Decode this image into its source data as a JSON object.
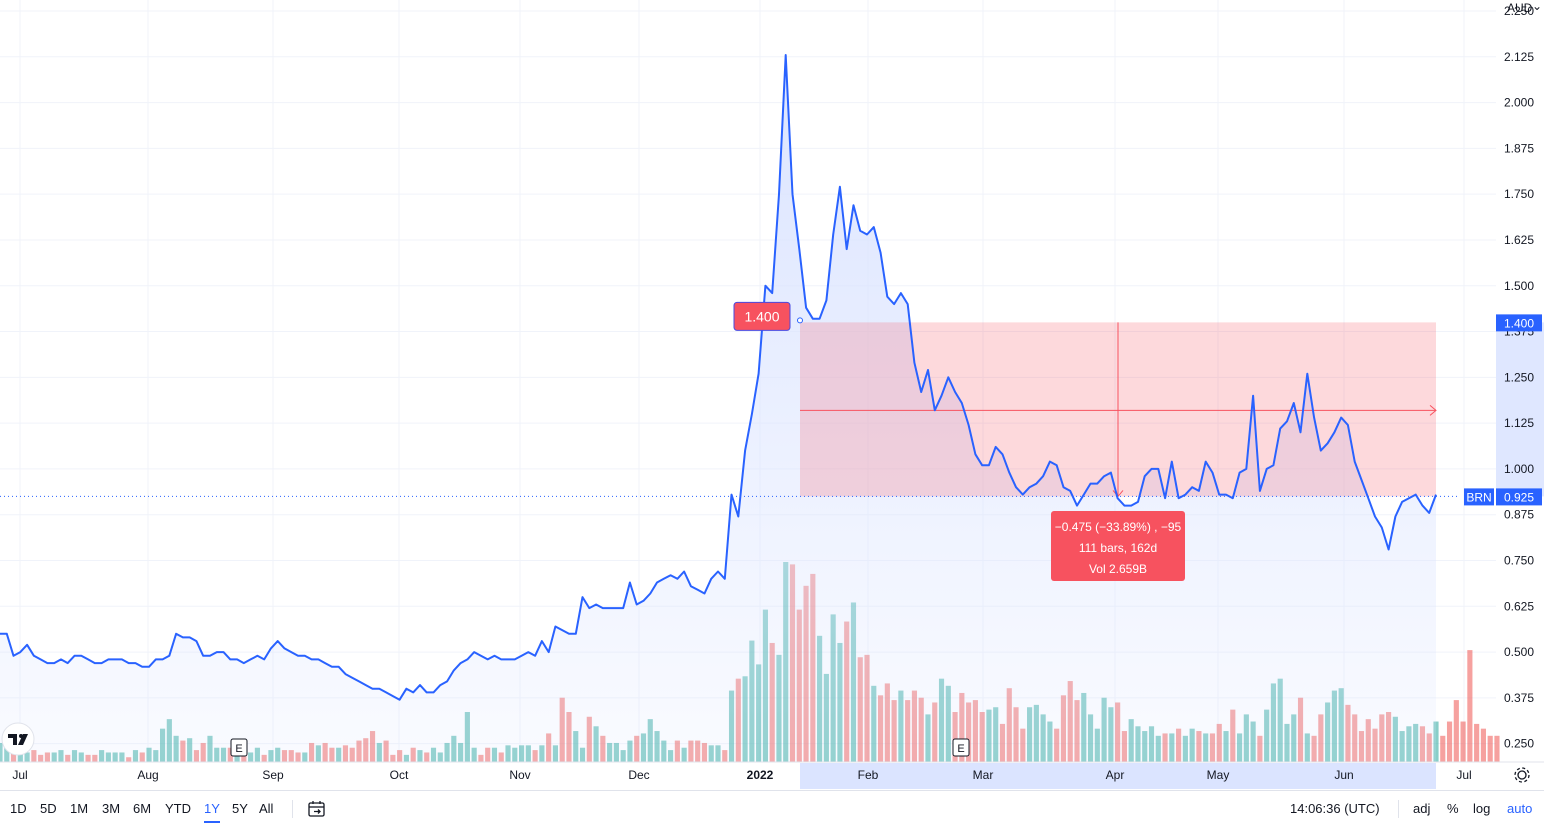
{
  "currency": "AUD",
  "currency_caret": "⌄",
  "symbol": "BRN",
  "last_price": "0.925",
  "ruler_start_price": "1.400",
  "measure": {
    "line1": "−0.475 (−33.89%) , −95",
    "line2": "111 bars, 162d",
    "line3": "Vol 2.659B"
  },
  "earnings_marker": "E",
  "footer": {
    "ranges": [
      "1D",
      "5D",
      "1M",
      "3M",
      "6M",
      "YTD",
      "1Y",
      "5Y",
      "All"
    ],
    "active_range": "1Y",
    "clock": "14:06:36 (UTC)",
    "options": [
      "adj",
      "%",
      "log",
      "auto"
    ],
    "active_option": "auto"
  },
  "colors": {
    "line": "#2962ff",
    "area_fill": "#dbe4ff",
    "volume_up": "#26a69a",
    "volume_down": "#ef5350",
    "measure_fill": "#f7525f",
    "grid": "#f0f3fa",
    "last_price_badge": "#2962ff"
  },
  "chart_data": {
    "type": "line",
    "title": "",
    "xlabel": "",
    "ylabel": "",
    "unit": "AUD",
    "x_tick_labels": [
      "Jul",
      "Aug",
      "Sep",
      "Oct",
      "Nov",
      "Dec",
      "2022",
      "Feb",
      "Mar",
      "Apr",
      "May",
      "Jun",
      "Jul"
    ],
    "y_ticks": [
      0.25,
      0.375,
      0.5,
      0.625,
      0.75,
      0.875,
      1.0,
      1.125,
      1.25,
      1.375,
      1.5,
      1.625,
      1.75,
      1.875,
      2.0,
      2.125,
      2.25
    ],
    "y_tick_labels": [
      "0.250",
      "0.375",
      "0.500",
      "0.625",
      "0.750",
      "0.875",
      "1.000",
      "1.125",
      "1.250",
      "1.375",
      "1.500",
      "1.625",
      "1.750",
      "1.875",
      "2.000",
      "2.125",
      "2.250"
    ],
    "ylim": [
      0.2,
      2.28
    ],
    "grid": true,
    "series": [
      {
        "values": [
          0.55,
          0.55,
          0.49,
          0.5,
          0.52,
          0.49,
          0.48,
          0.47,
          0.47,
          0.48,
          0.47,
          0.49,
          0.49,
          0.48,
          0.47,
          0.47,
          0.48,
          0.48,
          0.48,
          0.47,
          0.47,
          0.46,
          0.46,
          0.48,
          0.48,
          0.49,
          0.55,
          0.54,
          0.54,
          0.53,
          0.49,
          0.49,
          0.5,
          0.5,
          0.48,
          0.48,
          0.47,
          0.48,
          0.49,
          0.48,
          0.51,
          0.53,
          0.51,
          0.5,
          0.49,
          0.49,
          0.48,
          0.48,
          0.47,
          0.46,
          0.46,
          0.44,
          0.43,
          0.42,
          0.41,
          0.4,
          0.4,
          0.39,
          0.38,
          0.37,
          0.4,
          0.39,
          0.41,
          0.39,
          0.39,
          0.41,
          0.42,
          0.45,
          0.47,
          0.48,
          0.5,
          0.49,
          0.48,
          0.49,
          0.48,
          0.48,
          0.48,
          0.49,
          0.5,
          0.49,
          0.53,
          0.5,
          0.57,
          0.56,
          0.55,
          0.55,
          0.65,
          0.62,
          0.63,
          0.62,
          0.62,
          0.62,
          0.62,
          0.69,
          0.63,
          0.64,
          0.66,
          0.69,
          0.7,
          0.71,
          0.7,
          0.72,
          0.68,
          0.67,
          0.66,
          0.7,
          0.72,
          0.7,
          0.93,
          0.87,
          1.05,
          1.15,
          1.26,
          1.5,
          1.48,
          1.75,
          2.13,
          1.75,
          1.6,
          1.44,
          1.41,
          1.41,
          1.46,
          1.64,
          1.77,
          1.6,
          1.72,
          1.65,
          1.64,
          1.66,
          1.59,
          1.47,
          1.45,
          1.48,
          1.45,
          1.29,
          1.21,
          1.27,
          1.16,
          1.2,
          1.25,
          1.21,
          1.18,
          1.12,
          1.04,
          1.01,
          1.01,
          1.06,
          1.04,
          0.99,
          0.95,
          0.93,
          0.95,
          0.96,
          0.98,
          1.02,
          1.01,
          0.95,
          0.94,
          0.9,
          0.93,
          0.96,
          0.96,
          0.98,
          0.99,
          0.92,
          0.9,
          0.9,
          0.91,
          0.98,
          1.0,
          1.0,
          0.92,
          1.02,
          0.92,
          0.93,
          0.95,
          0.94,
          1.02,
          0.99,
          0.93,
          0.93,
          0.92,
          0.99,
          1.0,
          1.2,
          0.94,
          1.0,
          1.01,
          1.11,
          1.13,
          1.18,
          1.1,
          1.26,
          1.14,
          1.05,
          1.07,
          1.1,
          1.14,
          1.12,
          1.02,
          0.97,
          0.92,
          0.87,
          0.84,
          0.78,
          0.87,
          0.91,
          0.92,
          0.93,
          0.9,
          0.88,
          0.93
        ]
      }
    ],
    "volume": {
      "values": [
        0.08,
        0.06,
        0.05,
        0.06,
        0.04,
        0.05,
        0.03,
        0.04,
        0.04,
        0.05,
        0.03,
        0.05,
        0.04,
        0.03,
        0.03,
        0.05,
        0.04,
        0.04,
        0.04,
        0.02,
        0.05,
        0.04,
        0.06,
        0.05,
        0.14,
        0.18,
        0.11,
        0.09,
        0.1,
        0.05,
        0.08,
        0.11,
        0.06,
        0.06,
        0.06,
        0.06,
        0.05,
        0.04,
        0.06,
        0.03,
        0.05,
        0.06,
        0.05,
        0.05,
        0.04,
        0.04,
        0.08,
        0.07,
        0.08,
        0.06,
        0.06,
        0.07,
        0.06,
        0.09,
        0.1,
        0.13,
        0.08,
        0.09,
        0.03,
        0.05,
        0.03,
        0.06,
        0.05,
        0.04,
        0.06,
        0.04,
        0.08,
        0.11,
        0.08,
        0.21,
        0.06,
        0.03,
        0.06,
        0.06,
        0.04,
        0.07,
        0.06,
        0.07,
        0.07,
        0.05,
        0.07,
        0.12,
        0.07,
        0.27,
        0.21,
        0.13,
        0.06,
        0.19,
        0.15,
        0.11,
        0.08,
        0.08,
        0.05,
        0.09,
        0.11,
        0.12,
        0.18,
        0.13,
        0.09,
        0.05,
        0.09,
        0.06,
        0.09,
        0.09,
        0.08,
        0.07,
        0.07,
        0.05,
        0.3,
        0.35,
        0.36,
        0.51,
        0.41,
        0.64,
        0.5,
        0.45,
        0.84,
        0.83,
        0.64,
        0.74,
        0.79,
        0.53,
        0.37,
        0.62,
        0.5,
        0.59,
        0.67,
        0.44,
        0.45,
        0.32,
        0.28,
        0.33,
        0.26,
        0.3,
        0.26,
        0.3,
        0.27,
        0.2,
        0.25,
        0.35,
        0.32,
        0.21,
        0.29,
        0.25,
        0.26,
        0.21,
        0.22,
        0.23,
        0.16,
        0.31,
        0.23,
        0.14,
        0.23,
        0.24,
        0.2,
        0.17,
        0.14,
        0.28,
        0.34,
        0.26,
        0.29,
        0.2,
        0.14,
        0.27,
        0.23,
        0.25,
        0.13,
        0.18,
        0.15,
        0.13,
        0.15,
        0.11,
        0.12,
        0.12,
        0.14,
        0.11,
        0.14,
        0.13,
        0.12,
        0.12,
        0.16,
        0.13,
        0.22,
        0.12,
        0.2,
        0.17,
        0.11,
        0.22,
        0.33,
        0.35,
        0.16,
        0.2,
        0.27,
        0.12,
        0.11,
        0.2,
        0.25,
        0.3,
        0.31,
        0.24,
        0.2,
        0.13,
        0.18,
        0.14,
        0.2,
        0.21,
        0.19,
        0.13,
        0.15,
        0.16,
        0.15,
        0.12,
        0.17,
        0.11,
        0.17,
        0.26,
        0.17,
        0.47,
        0.16,
        0.14,
        0.11,
        0.11
      ]
    }
  }
}
